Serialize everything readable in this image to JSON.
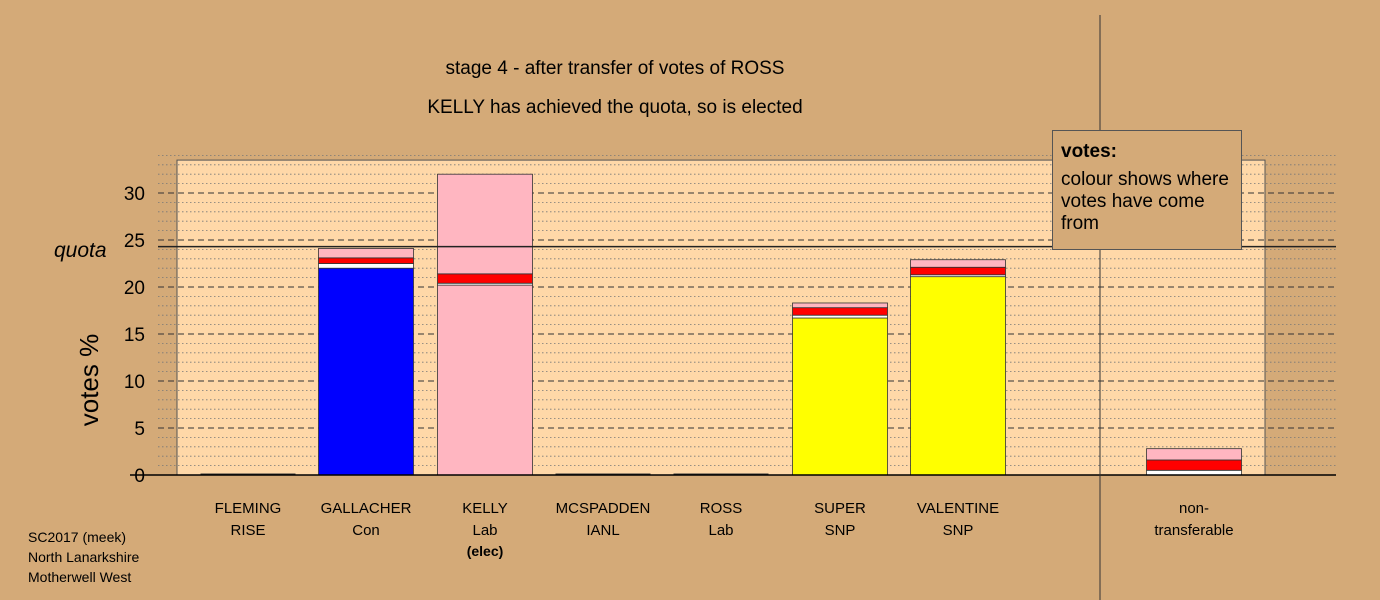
{
  "chart_data": {
    "type": "bar",
    "title": "stage 4 - after transfer of votes of ROSS",
    "subtitle": "KELLY has achieved the quota, so is elected",
    "ylabel": "votes %",
    "ylim": [
      0,
      33.5
    ],
    "yticks": [
      0,
      5,
      10,
      15,
      20,
      25,
      30
    ],
    "quota": 24.3,
    "quota_label": "quota",
    "grid": true,
    "categories": [
      {
        "name": "FLEMING",
        "party": "RISE",
        "note": ""
      },
      {
        "name": "GALLACHER",
        "party": "Con",
        "note": ""
      },
      {
        "name": "KELLY",
        "party": "Lab",
        "note": "(elec)"
      },
      {
        "name": "MCSPADDEN",
        "party": "IANL",
        "note": ""
      },
      {
        "name": "ROSS",
        "party": "Lab",
        "note": ""
      },
      {
        "name": "SUPER",
        "party": "SNP",
        "note": ""
      },
      {
        "name": "VALENTINE",
        "party": "SNP",
        "note": ""
      }
    ],
    "stacks": [
      [],
      [
        {
          "value": 22.0,
          "color": "#0000ff"
        },
        {
          "value": 0.5,
          "color": "#ffffff"
        },
        {
          "value": 0.6,
          "color": "#ff0000"
        },
        {
          "value": 1.0,
          "color": "#ffb6c1"
        }
      ],
      [
        {
          "value": 20.2,
          "color": "#ffb6c1"
        },
        {
          "value": 0.2,
          "color": "#ffffff"
        },
        {
          "value": 1.0,
          "color": "#ff0000"
        },
        {
          "value": 10.6,
          "color": "#ffb6c1"
        }
      ],
      [],
      [],
      [
        {
          "value": 16.7,
          "color": "#ffff00"
        },
        {
          "value": 0.3,
          "color": "#ffffff"
        },
        {
          "value": 0.8,
          "color": "#ff0000"
        },
        {
          "value": 0.5,
          "color": "#ffb6c1"
        }
      ],
      [
        {
          "value": 21.1,
          "color": "#ffff00"
        },
        {
          "value": 0.2,
          "color": "#ffffff"
        },
        {
          "value": 0.8,
          "color": "#ff0000"
        },
        {
          "value": 0.8,
          "color": "#ffb6c1"
        }
      ]
    ],
    "nontransferable": {
      "label_line1": "non-",
      "label_line2": "transferable",
      "stack": [
        {
          "value": 0.5,
          "color": "#ffffff"
        },
        {
          "value": 1.1,
          "color": "#ff0000"
        },
        {
          "value": 1.2,
          "color": "#ffb6c1"
        }
      ]
    }
  },
  "legend": {
    "title": "votes:",
    "text": "colour shows where votes have come from"
  },
  "footer": {
    "line1": "SC2017 (meek)",
    "line2": "North Lanarkshire",
    "line3": "Motherwell West"
  }
}
